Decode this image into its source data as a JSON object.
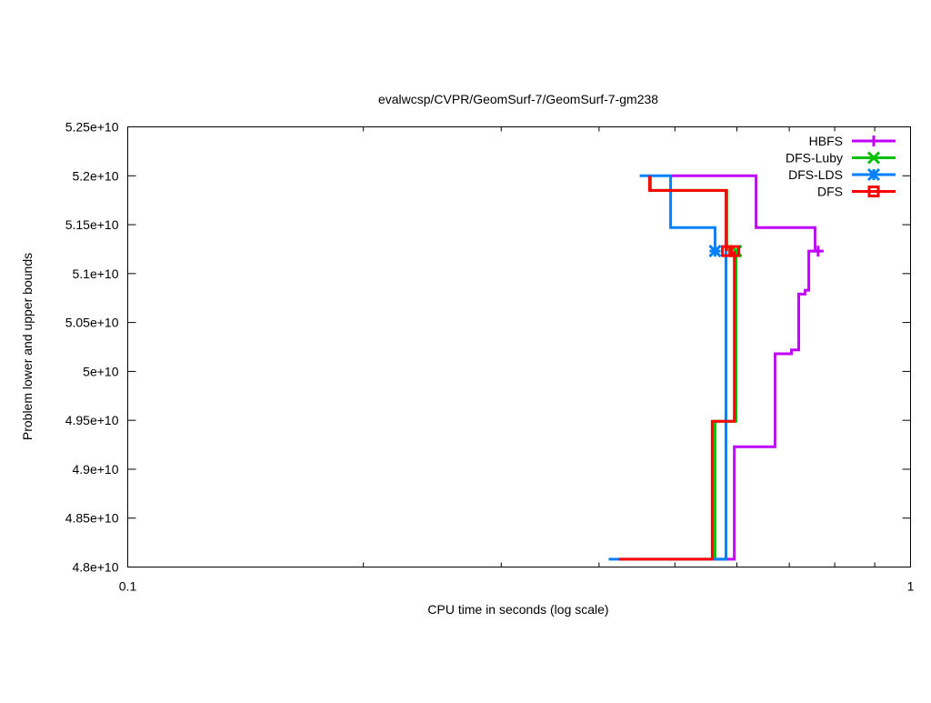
{
  "chart_data": {
    "type": "line",
    "title": "evalwcsp/CVPR/GeomSurf-7/GeomSurf-7-gm238",
    "xlabel": "CPU time in seconds (log scale)",
    "ylabel": "Problem lower and upper bounds",
    "xscale": "log",
    "xlim": [
      0.1,
      1
    ],
    "ylim": [
      48000000000.0,
      52500000000.0
    ],
    "x_ticks": [
      {
        "value": 0.1,
        "label": "0.1"
      },
      {
        "value": 1,
        "label": "1"
      }
    ],
    "x_minor_ticks": [
      0.2,
      0.3,
      0.4,
      0.5,
      0.6,
      0.7,
      0.8,
      0.9
    ],
    "y_ticks": [
      {
        "value": 48000000000.0,
        "label": "4.8e+10"
      },
      {
        "value": 48500000000.0,
        "label": "4.85e+10"
      },
      {
        "value": 49000000000.0,
        "label": "4.9e+10"
      },
      {
        "value": 49500000000.0,
        "label": "4.95e+10"
      },
      {
        "value": 50000000000.0,
        "label": "5e+10"
      },
      {
        "value": 50500000000.0,
        "label": "5.05e+10"
      },
      {
        "value": 51000000000.0,
        "label": "5.1e+10"
      },
      {
        "value": 51500000000.0,
        "label": "5.15e+10"
      },
      {
        "value": 52000000000.0,
        "label": "5.2e+10"
      },
      {
        "value": 52500000000.0,
        "label": "5.25e+10"
      }
    ],
    "grid": false,
    "legend_position": "top-right",
    "series": [
      {
        "name": "HBFS",
        "color": "#c000ff",
        "marker": "plus",
        "upper": [
          [
            0.4937,
            52000000000.0
          ],
          [
            0.6348,
            52000000000.0
          ],
          [
            0.6348,
            51470000000.0
          ],
          [
            0.7551,
            51470000000.0
          ],
          [
            0.7551,
            51230000000.0
          ]
        ],
        "lower": [
          [
            0.5627,
            48080000000.0
          ],
          [
            0.5955,
            48080000000.0
          ],
          [
            0.5955,
            49230000000.0
          ],
          [
            0.6714,
            49230000000.0
          ],
          [
            0.6714,
            50180000000.0
          ],
          [
            0.7046,
            50180000000.0
          ],
          [
            0.7046,
            50220000000.0
          ],
          [
            0.7197,
            50220000000.0
          ],
          [
            0.7197,
            50790000000.0
          ],
          [
            0.7334,
            50790000000.0
          ],
          [
            0.7334,
            50830000000.0
          ],
          [
            0.7413,
            50830000000.0
          ],
          [
            0.7413,
            51230000000.0
          ],
          [
            0.7632,
            51230000000.0
          ]
        ],
        "markers": [
          [
            0.762,
            51230000000.0
          ]
        ]
      },
      {
        "name": "DFS-Luby",
        "color": "#00c000",
        "marker": "cross",
        "upper": [
          [
            0.4654,
            52000000000.0
          ],
          [
            0.4654,
            51850000000.0
          ],
          [
            0.5828,
            51850000000.0
          ],
          [
            0.5828,
            51230000000.0
          ]
        ],
        "lower": [
          [
            0.5627,
            48080000000.0
          ],
          [
            0.5627,
            49490000000.0
          ],
          [
            0.5984,
            49490000000.0
          ],
          [
            0.5984,
            51230000000.0
          ]
        ],
        "markers": [
          [
            0.5984,
            51230000000.0
          ]
        ]
      },
      {
        "name": "DFS-LDS",
        "color": "#0080ff",
        "marker": "star",
        "upper": [
          [
            0.4508,
            52000000000.0
          ],
          [
            0.4937,
            52000000000.0
          ],
          [
            0.4937,
            51470000000.0
          ],
          [
            0.5627,
            51470000000.0
          ],
          [
            0.5627,
            51230000000.0
          ]
        ],
        "lower": [
          [
            0.4115,
            48080000000.0
          ],
          [
            0.581,
            48080000000.0
          ],
          [
            0.581,
            51230000000.0
          ]
        ],
        "markers": [
          [
            0.5627,
            51230000000.0
          ]
        ]
      },
      {
        "name": "DFS",
        "color": "#ff0000",
        "marker": "square",
        "upper": [
          [
            0.464,
            52000000000.0
          ],
          [
            0.464,
            51850000000.0
          ],
          [
            0.581,
            51850000000.0
          ],
          [
            0.581,
            51230000000.0
          ]
        ],
        "lower": [
          [
            0.424,
            48080000000.0
          ],
          [
            0.558,
            48080000000.0
          ],
          [
            0.558,
            49490000000.0
          ],
          [
            0.5955,
            49490000000.0
          ],
          [
            0.5955,
            51230000000.0
          ]
        ],
        "markers": [
          [
            0.5828,
            51230000000.0
          ],
          [
            0.5955,
            51230000000.0
          ]
        ]
      }
    ]
  }
}
